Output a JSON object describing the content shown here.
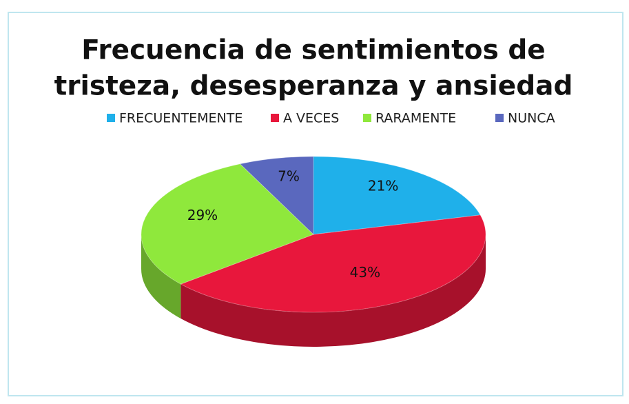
{
  "chart_data": {
    "type": "pie",
    "title": [
      "Frecuencia de sentimientos de",
      "tristeza, desesperanza y ansiedad"
    ],
    "categories": [
      "FRECUENTEMENTE",
      "A VECES",
      "RARAMENTE",
      "NUNCA"
    ],
    "values": [
      21,
      43,
      29,
      7
    ],
    "value_labels": [
      "21%",
      "43%",
      "29%",
      "7%"
    ],
    "colors": [
      "#1fb0ea",
      "#e8173c",
      "#8fe83c",
      "#5a68be"
    ],
    "legend": "top"
  }
}
